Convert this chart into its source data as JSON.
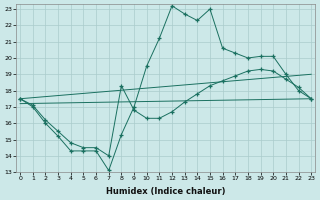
{
  "xlabel": "Humidex (Indice chaleur)",
  "bg_color": "#cce8e8",
  "grid_color": "#aacccc",
  "line_color": "#1a7060",
  "xlim_min": 0,
  "xlim_max": 23,
  "ylim_min": 13,
  "ylim_max": 23,
  "line1_x": [
    0,
    1,
    2,
    3,
    4,
    5,
    6,
    7,
    8,
    9,
    10,
    11,
    12,
    13,
    14,
    15,
    16,
    17,
    18,
    19,
    20,
    21,
    22,
    23
  ],
  "line1_y": [
    17.5,
    17.0,
    16.0,
    15.2,
    14.3,
    14.3,
    14.3,
    13.1,
    15.3,
    17.0,
    19.5,
    21.2,
    23.2,
    22.7,
    22.3,
    23.0,
    20.6,
    20.3,
    20.0,
    20.1,
    20.1,
    19.0,
    18.0,
    17.5
  ],
  "line2_x": [
    0,
    1,
    2,
    3,
    4,
    5,
    6,
    7,
    8,
    9,
    10,
    11,
    12,
    13,
    14,
    15,
    16,
    17,
    18,
    19,
    20,
    21,
    22,
    23
  ],
  "line2_y": [
    17.5,
    17.1,
    16.2,
    15.5,
    14.8,
    14.5,
    14.5,
    14.0,
    18.3,
    16.8,
    16.3,
    16.3,
    16.7,
    17.3,
    17.8,
    18.3,
    18.6,
    18.9,
    19.2,
    19.3,
    19.2,
    18.7,
    18.2,
    17.5
  ],
  "line3_x": [
    0,
    23
  ],
  "line3_y": [
    17.5,
    19.0
  ],
  "line4_x": [
    0,
    23
  ],
  "line4_y": [
    17.2,
    17.5
  ]
}
